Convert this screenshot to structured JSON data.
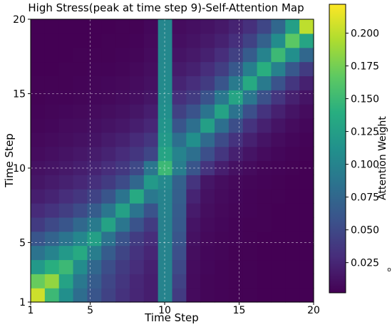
{
  "chart_data": {
    "type": "heatmap",
    "title": "High Stress(peak at time step 9)-Self-Attention Map",
    "xlabel": "Time Step",
    "ylabel": "Time Step",
    "x_ticks": [
      "1",
      "5",
      "10",
      "15",
      "20"
    ],
    "y_ticks": [
      "1",
      "5",
      "10",
      "15",
      "20"
    ],
    "x_range": [
      1,
      20
    ],
    "y_range": [
      1,
      20
    ],
    "grid": true,
    "colormap": "viridis",
    "colorbar": {
      "label": "Attention Weight",
      "ticks": [
        "0.025",
        "0.050",
        "0.075",
        "0.100",
        "0.125",
        "0.150",
        "0.175",
        "0.200"
      ],
      "range": [
        0.002,
        0.222
      ],
      "mark": "o"
    },
    "peak_time_step": 9,
    "matrix": [
      [
        0.205,
        0.15,
        0.11,
        0.08,
        0.06,
        0.045,
        0.033,
        0.025,
        0.02,
        0.1,
        0.04,
        0.008,
        0.005,
        0.004,
        0.003,
        0.003,
        0.002,
        0.002,
        0.002,
        0.002
      ],
      [
        0.17,
        0.185,
        0.128,
        0.09,
        0.066,
        0.048,
        0.036,
        0.026,
        0.02,
        0.1,
        0.045,
        0.008,
        0.005,
        0.004,
        0.003,
        0.003,
        0.002,
        0.002,
        0.002,
        0.002
      ],
      [
        0.12,
        0.14,
        0.15,
        0.108,
        0.075,
        0.054,
        0.04,
        0.03,
        0.022,
        0.1,
        0.05,
        0.009,
        0.006,
        0.004,
        0.003,
        0.003,
        0.002,
        0.002,
        0.002,
        0.002
      ],
      [
        0.085,
        0.1,
        0.12,
        0.135,
        0.094,
        0.066,
        0.047,
        0.034,
        0.025,
        0.1,
        0.055,
        0.01,
        0.006,
        0.005,
        0.003,
        0.003,
        0.002,
        0.002,
        0.002,
        0.002
      ],
      [
        0.06,
        0.072,
        0.086,
        0.102,
        0.125,
        0.085,
        0.058,
        0.041,
        0.03,
        0.1,
        0.06,
        0.012,
        0.007,
        0.005,
        0.004,
        0.003,
        0.002,
        0.002,
        0.002,
        0.002
      ],
      [
        0.04,
        0.05,
        0.06,
        0.076,
        0.092,
        0.128,
        0.088,
        0.058,
        0.04,
        0.098,
        0.064,
        0.014,
        0.008,
        0.006,
        0.004,
        0.003,
        0.003,
        0.002,
        0.002,
        0.002
      ],
      [
        0.028,
        0.034,
        0.042,
        0.052,
        0.066,
        0.088,
        0.126,
        0.086,
        0.058,
        0.1,
        0.066,
        0.018,
        0.01,
        0.007,
        0.005,
        0.004,
        0.003,
        0.002,
        0.002,
        0.002
      ],
      [
        0.02,
        0.024,
        0.03,
        0.036,
        0.046,
        0.06,
        0.086,
        0.135,
        0.09,
        0.1,
        0.068,
        0.024,
        0.012,
        0.008,
        0.006,
        0.004,
        0.003,
        0.003,
        0.002,
        0.002
      ],
      [
        0.015,
        0.018,
        0.022,
        0.026,
        0.032,
        0.04,
        0.052,
        0.075,
        0.12,
        0.105,
        0.07,
        0.035,
        0.015,
        0.01,
        0.007,
        0.005,
        0.004,
        0.003,
        0.002,
        0.002
      ],
      [
        0.012,
        0.014,
        0.017,
        0.02,
        0.024,
        0.03,
        0.038,
        0.05,
        0.088,
        0.15,
        0.095,
        0.06,
        0.035,
        0.02,
        0.012,
        0.008,
        0.005,
        0.004,
        0.003,
        0.002
      ],
      [
        0.009,
        0.011,
        0.013,
        0.016,
        0.019,
        0.023,
        0.029,
        0.036,
        0.048,
        0.13,
        0.1,
        0.082,
        0.055,
        0.036,
        0.022,
        0.014,
        0.009,
        0.006,
        0.004,
        0.003
      ],
      [
        0.007,
        0.008,
        0.01,
        0.012,
        0.014,
        0.018,
        0.022,
        0.028,
        0.036,
        0.12,
        0.082,
        0.11,
        0.078,
        0.052,
        0.034,
        0.022,
        0.014,
        0.009,
        0.006,
        0.004
      ],
      [
        0.005,
        0.006,
        0.008,
        0.009,
        0.011,
        0.013,
        0.016,
        0.02,
        0.026,
        0.115,
        0.06,
        0.082,
        0.125,
        0.082,
        0.054,
        0.034,
        0.022,
        0.014,
        0.009,
        0.006
      ],
      [
        0.004,
        0.005,
        0.006,
        0.007,
        0.008,
        0.01,
        0.012,
        0.015,
        0.02,
        0.11,
        0.044,
        0.058,
        0.086,
        0.128,
        0.085,
        0.055,
        0.034,
        0.022,
        0.014,
        0.009
      ],
      [
        0.003,
        0.004,
        0.004,
        0.005,
        0.006,
        0.007,
        0.009,
        0.011,
        0.015,
        0.108,
        0.032,
        0.04,
        0.058,
        0.09,
        0.13,
        0.088,
        0.056,
        0.036,
        0.022,
        0.014
      ],
      [
        0.003,
        0.003,
        0.003,
        0.004,
        0.005,
        0.006,
        0.007,
        0.009,
        0.012,
        0.106,
        0.024,
        0.03,
        0.04,
        0.06,
        0.092,
        0.135,
        0.092,
        0.058,
        0.036,
        0.022
      ],
      [
        0.002,
        0.002,
        0.003,
        0.003,
        0.004,
        0.004,
        0.005,
        0.007,
        0.01,
        0.105,
        0.018,
        0.022,
        0.03,
        0.042,
        0.062,
        0.096,
        0.14,
        0.098,
        0.062,
        0.04
      ],
      [
        0.002,
        0.002,
        0.002,
        0.003,
        0.003,
        0.003,
        0.004,
        0.005,
        0.008,
        0.104,
        0.014,
        0.017,
        0.022,
        0.03,
        0.044,
        0.066,
        0.1,
        0.15,
        0.11,
        0.075
      ],
      [
        0.002,
        0.002,
        0.002,
        0.002,
        0.002,
        0.003,
        0.003,
        0.004,
        0.007,
        0.103,
        0.011,
        0.013,
        0.017,
        0.022,
        0.031,
        0.045,
        0.07,
        0.108,
        0.165,
        0.13
      ],
      [
        0.002,
        0.002,
        0.002,
        0.002,
        0.002,
        0.002,
        0.003,
        0.003,
        0.006,
        0.102,
        0.009,
        0.011,
        0.013,
        0.017,
        0.023,
        0.032,
        0.048,
        0.075,
        0.125,
        0.2
      ]
    ]
  }
}
